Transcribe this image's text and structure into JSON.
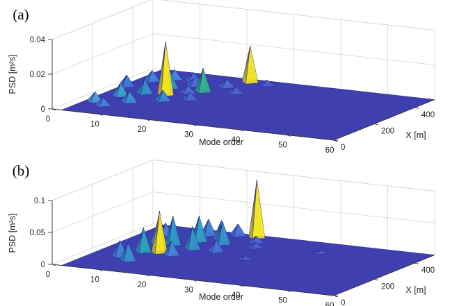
{
  "chart_data": [
    {
      "type": "surface3d",
      "panel_label": "(a)",
      "xlabel": "Mode order",
      "ylabel": "X [m]",
      "zlabel": "PSD [m²s]",
      "x_ticks": [
        "0",
        "10",
        "20",
        "30",
        "40",
        "50",
        "60"
      ],
      "y_ticks": [
        "0",
        "200",
        "400"
      ],
      "z_ticks": [
        "0",
        "0.02",
        "0.04"
      ],
      "xlim": [
        0,
        60
      ],
      "ylim": [
        0,
        500
      ],
      "zlim": [
        0,
        0.04
      ],
      "peaks": [
        {
          "mode": 13,
          "x": 260,
          "psd": 0.0305,
          "color": "#f5e81a"
        },
        {
          "mode": 22,
          "x": 470,
          "psd": 0.021,
          "color": "#f0e21f"
        },
        {
          "mode": 18,
          "x": 330,
          "psd": 0.0135,
          "color": "#35b38c"
        },
        {
          "mode": 11,
          "x": 330,
          "psd": 0.0095,
          "color": "#2a9fc0"
        },
        {
          "mode": 9,
          "x": 250,
          "psd": 0.0085,
          "color": "#2f93c9"
        },
        {
          "mode": 6,
          "x": 200,
          "psd": 0.0075,
          "color": "#3aa3c8"
        },
        {
          "mode": 4,
          "x": 120,
          "psd": 0.0055,
          "color": "#4aa0d8"
        },
        {
          "mode": 7,
          "x": 90,
          "psd": 0.0045,
          "color": "#4a7ee0"
        },
        {
          "mode": 10,
          "x": 150,
          "psd": 0.0065,
          "color": "#3c8fd2"
        },
        {
          "mode": 3,
          "x": 300,
          "psd": 0.0065,
          "color": "#3d79d6"
        },
        {
          "mode": 5,
          "x": 380,
          "psd": 0.006,
          "color": "#4584dc"
        },
        {
          "mode": 8,
          "x": 420,
          "psd": 0.0055,
          "color": "#4a88dd"
        },
        {
          "mode": 12,
          "x": 420,
          "psd": 0.005,
          "color": "#4a6fda"
        },
        {
          "mode": 15,
          "x": 200,
          "psd": 0.006,
          "color": "#3a8ad0"
        },
        {
          "mode": 14,
          "x": 380,
          "psd": 0.0045,
          "color": "#4b72d9"
        },
        {
          "mode": 16,
          "x": 300,
          "psd": 0.0045,
          "color": "#4b6ed8"
        },
        {
          "mode": 19,
          "x": 240,
          "psd": 0.004,
          "color": "#4b6bd6"
        },
        {
          "mode": 20,
          "x": 400,
          "psd": 0.0045,
          "color": "#4a70d8"
        },
        {
          "mode": 24,
          "x": 350,
          "psd": 0.0035,
          "color": "#4c68d5"
        },
        {
          "mode": 26,
          "x": 460,
          "psd": 0.003,
          "color": "#4c63d2"
        }
      ]
    },
    {
      "type": "surface3d",
      "panel_label": "(b)",
      "xlabel": "Mode order",
      "ylabel": "X [m]",
      "zlabel": "PSD [m²s]",
      "x_ticks": [
        "0",
        "10",
        "20",
        "30",
        "40",
        "50",
        "60"
      ],
      "y_ticks": [
        "0",
        "200",
        "400"
      ],
      "z_ticks": [
        "0",
        "0.05",
        "0.1"
      ],
      "xlim": [
        0,
        60
      ],
      "ylim": [
        0,
        500
      ],
      "zlim": [
        0,
        0.1
      ],
      "peaks": [
        {
          "mode": 23,
          "x": 480,
          "psd": 0.0905,
          "color": "#f5e81a"
        },
        {
          "mode": 13,
          "x": 230,
          "psd": 0.065,
          "color": "#f3e61c"
        },
        {
          "mode": 10,
          "x": 220,
          "psd": 0.038,
          "color": "#2aa6b8"
        },
        {
          "mode": 12,
          "x": 320,
          "psd": 0.045,
          "color": "#2c9cc4"
        },
        {
          "mode": 15,
          "x": 380,
          "psd": 0.04,
          "color": "#32a0c2"
        },
        {
          "mode": 9,
          "x": 320,
          "psd": 0.04,
          "color": "#35a9bd"
        },
        {
          "mode": 11,
          "x": 120,
          "psd": 0.028,
          "color": "#3a8fd0"
        },
        {
          "mode": 17,
          "x": 300,
          "psd": 0.035,
          "color": "#3296c8"
        },
        {
          "mode": 18,
          "x": 420,
          "psd": 0.03,
          "color": "#3a90cf"
        },
        {
          "mode": 20,
          "x": 380,
          "psd": 0.035,
          "color": "#3493cb"
        },
        {
          "mode": 8,
          "x": 150,
          "psd": 0.025,
          "color": "#4187d6"
        },
        {
          "mode": 14,
          "x": 450,
          "psd": 0.025,
          "color": "#4280d6"
        },
        {
          "mode": 16,
          "x": 220,
          "psd": 0.022,
          "color": "#4487d8"
        },
        {
          "mode": 19,
          "x": 480,
          "psd": 0.018,
          "color": "#4a75d9"
        },
        {
          "mode": 22,
          "x": 300,
          "psd": 0.018,
          "color": "#4a78d9"
        },
        {
          "mode": 7,
          "x": 400,
          "psd": 0.02,
          "color": "#467fd8"
        },
        {
          "mode": 25,
          "x": 430,
          "psd": 0.01,
          "color": "#4c68d5"
        },
        {
          "mode": 27,
          "x": 380,
          "psd": 0.008,
          "color": "#4c63d2"
        },
        {
          "mode": 30,
          "x": 260,
          "psd": 0.005,
          "color": "#4d5fcf"
        },
        {
          "mode": 40,
          "x": 400,
          "psd": 0.004,
          "color": "#4d5fcf"
        }
      ]
    }
  ]
}
